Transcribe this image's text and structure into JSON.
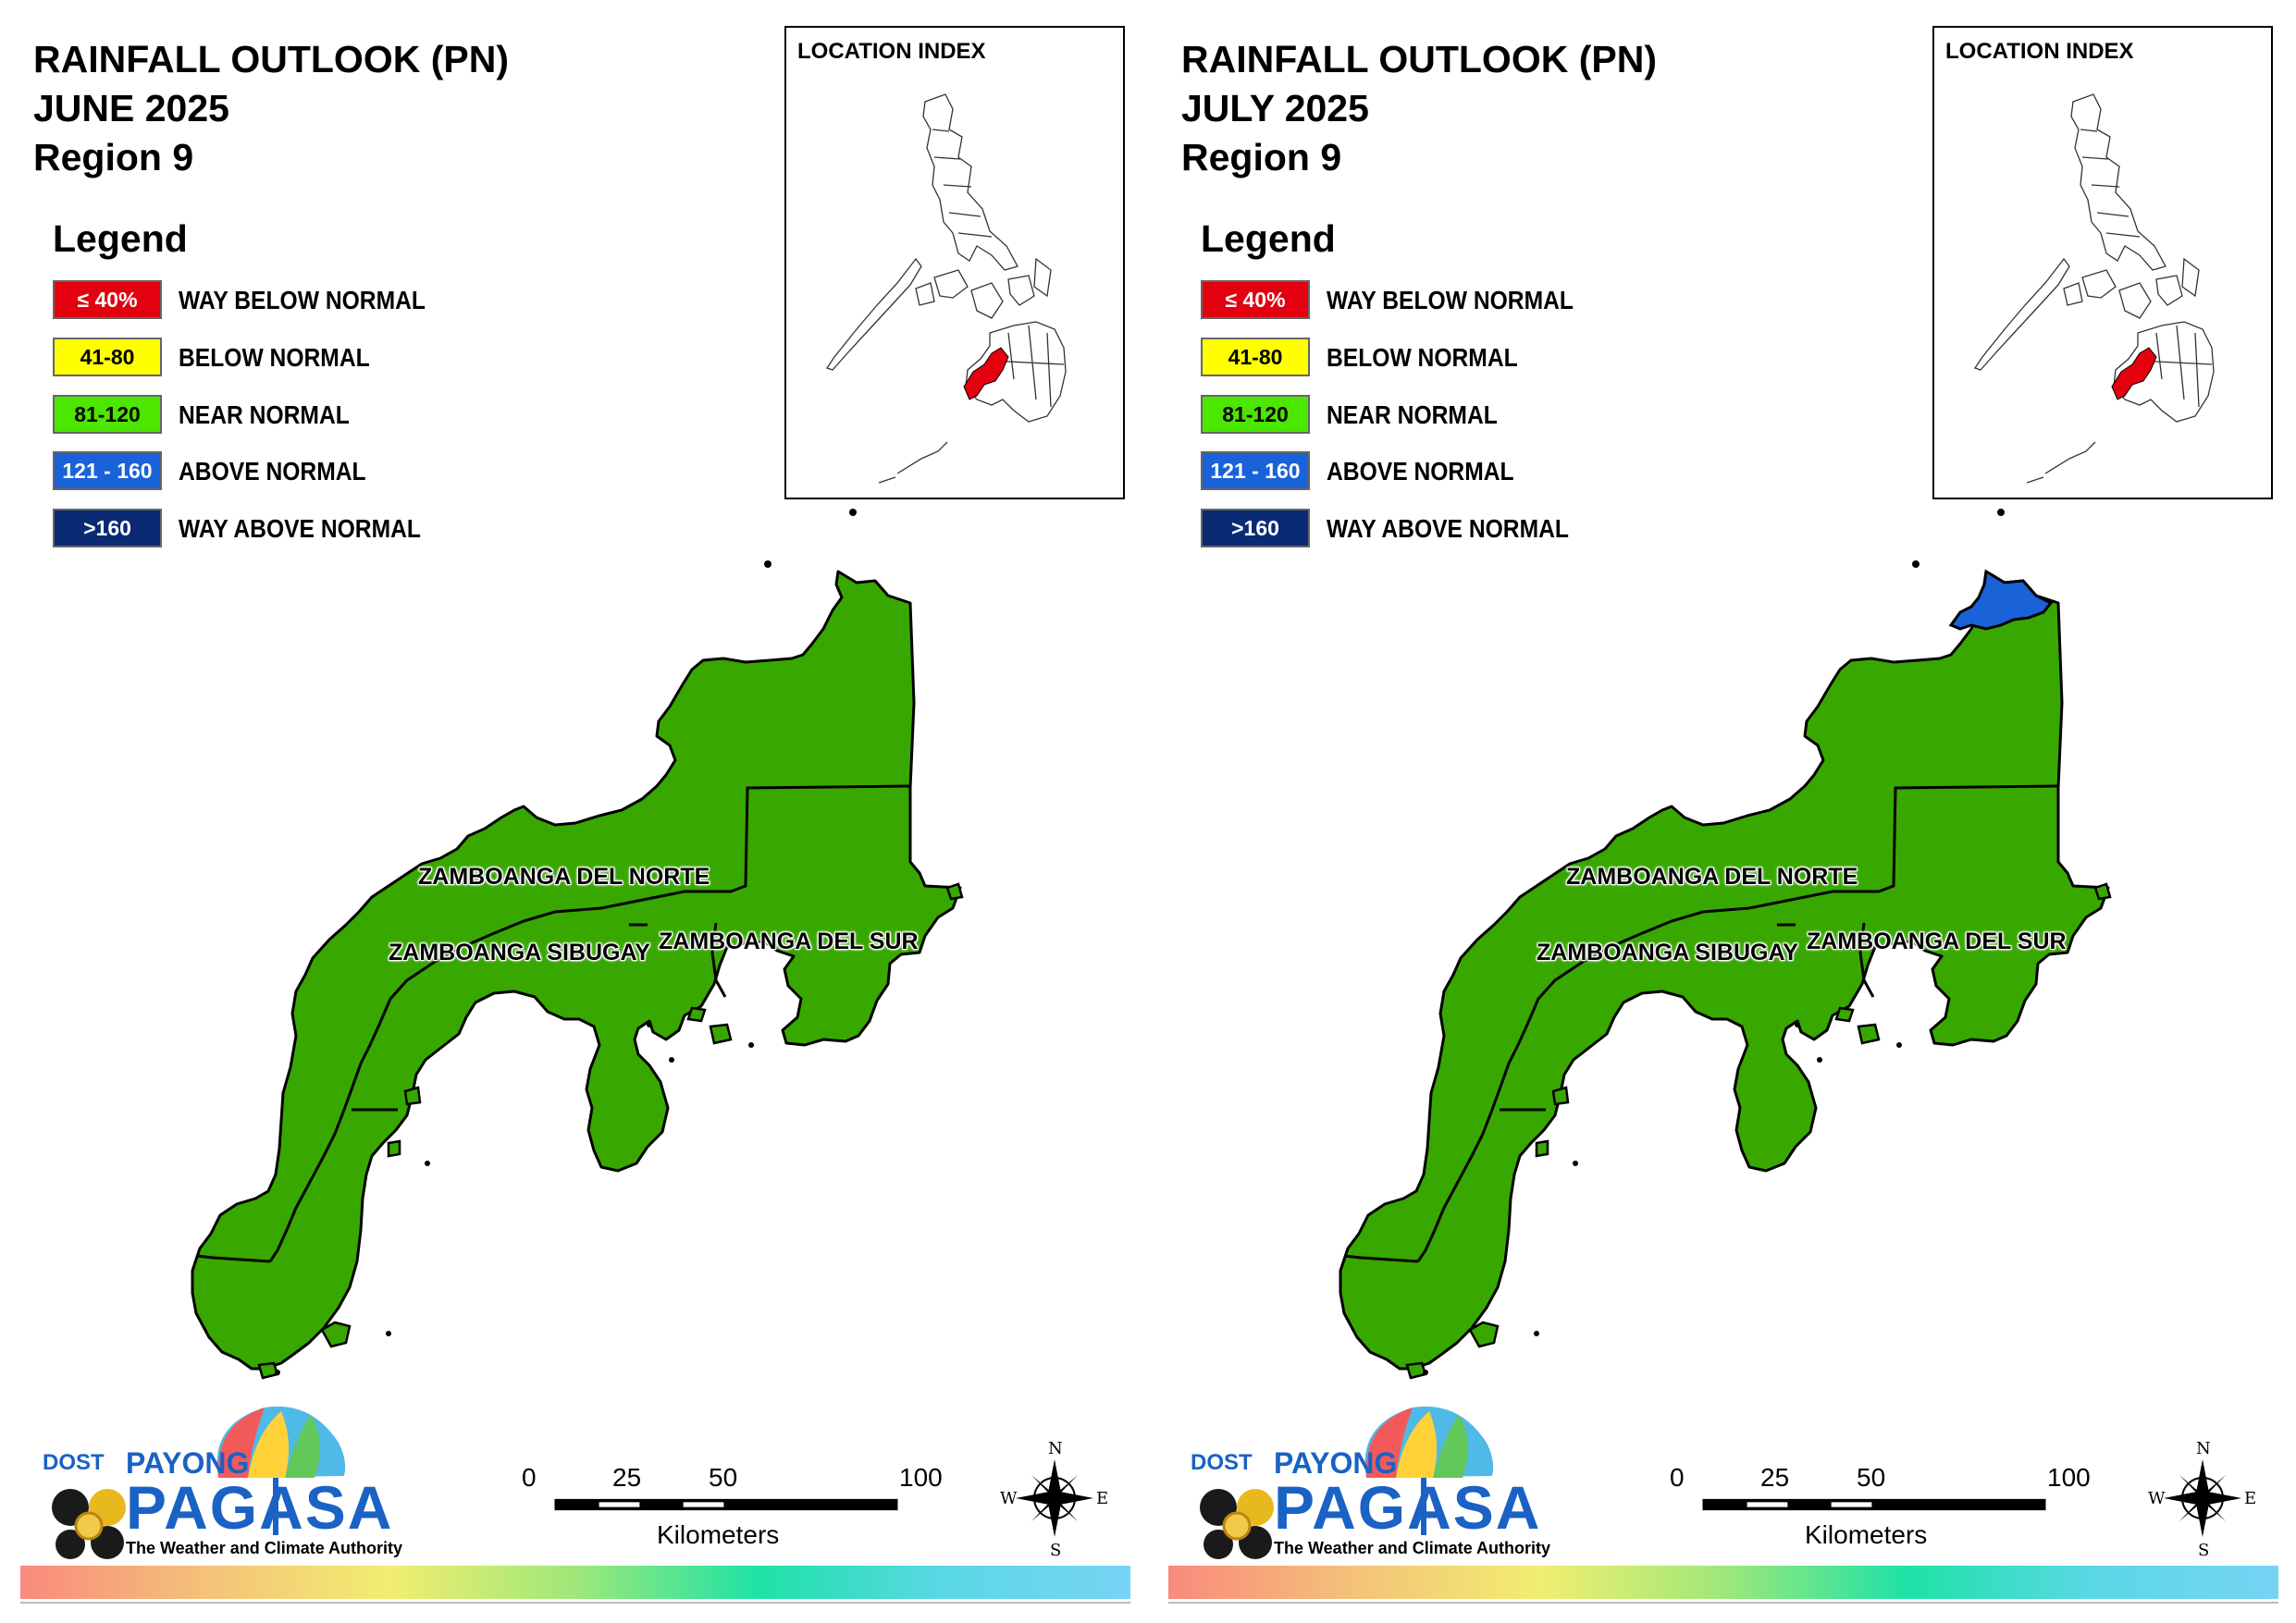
{
  "panels": [
    {
      "title_line1": "RAINFALL OUTLOOK (PN)",
      "title_line2": "JUNE 2025",
      "title_line3": "Region 9",
      "index_title": "LOCATION INDEX"
    },
    {
      "title_line1": "RAINFALL OUTLOOK (PN)",
      "title_line2": "JULY 2025",
      "title_line3": "Region 9",
      "index_title": "LOCATION INDEX"
    }
  ],
  "legend": {
    "heading": "Legend",
    "items": [
      {
        "range": "≤ 40%",
        "label": "WAY BELOW NORMAL",
        "color": "#e3000f",
        "text_color": "#ffffff"
      },
      {
        "range": "41-80",
        "label": "BELOW NORMAL",
        "color": "#ffff00",
        "text_color": "#000000"
      },
      {
        "range": "81-120",
        "label": "NEAR NORMAL",
        "color": "#4ce600",
        "text_color": "#000000"
      },
      {
        "range": "121 - 160",
        "label": "ABOVE NORMAL",
        "color": "#1a62d8",
        "text_color": "#ffffff"
      },
      {
        "range": ">160",
        "label": "WAY ABOVE NORMAL",
        "color": "#0a2a74",
        "text_color": "#ffffff"
      }
    ]
  },
  "provinces": {
    "norte": "ZAMBOANGA DEL NORTE",
    "sibugay": "ZAMBOANGA SIBUGAY",
    "sur": "ZAMBOANGA DEL SUR"
  },
  "map_colors": {
    "near_normal": "#38a800",
    "above_normal": "#1a62d8",
    "region_highlight": "#e3000f"
  },
  "scalebar": {
    "ticks": [
      "0",
      "25",
      "50",
      "100"
    ],
    "unit": "Kilometers"
  },
  "compass": {
    "n": "N",
    "s": "S",
    "e": "E",
    "w": "W"
  },
  "logo": {
    "dost": "DOST",
    "payong": "PAYONG",
    "pagasa": "PAGASA",
    "tagline": "The Weather and Climate Authority"
  }
}
